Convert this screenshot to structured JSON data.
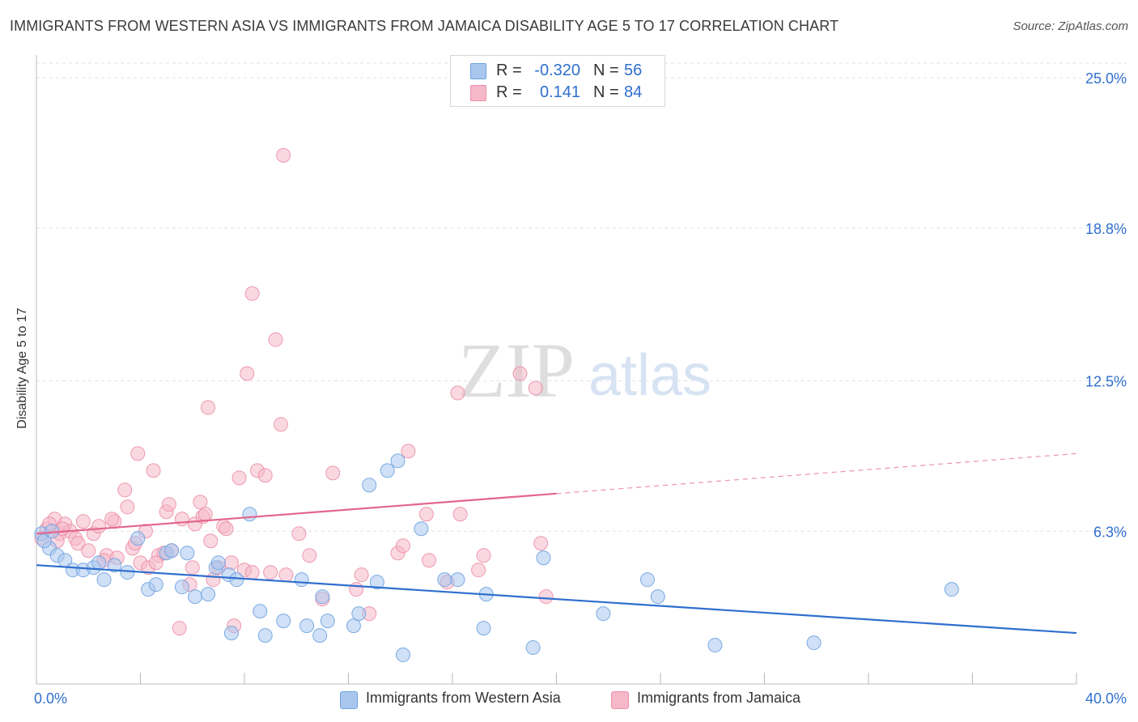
{
  "title": "IMMIGRANTS FROM WESTERN ASIA VS IMMIGRANTS FROM JAMAICA DISABILITY AGE 5 TO 17 CORRELATION CHART",
  "source": "Source: ZipAtlas.com",
  "watermark": {
    "zip": "ZIP",
    "atlas": "atlas"
  },
  "legend": {
    "rows": [
      {
        "r_label": "R =",
        "r_value": "-0.320",
        "n_label": "N =",
        "n_value": "56",
        "color": "#a9c6ee"
      },
      {
        "r_label": "R =",
        "r_value": "0.141",
        "n_label": "N =",
        "n_value": "84",
        "color": "#f5b8c8"
      }
    ]
  },
  "bottom_legend": [
    {
      "label": "Immigrants from Western Asia",
      "color": "#a9c6ee"
    },
    {
      "label": "Immigrants from Jamaica",
      "color": "#f5b8c8"
    }
  ],
  "chart_data": {
    "type": "scatter",
    "title": "IMMIGRANTS FROM WESTERN ASIA VS IMMIGRANTS FROM JAMAICA DISABILITY AGE 5 TO 17 CORRELATION CHART",
    "xlabel": "",
    "ylabel": "Disability Age 5 to 17",
    "xlim": [
      0,
      40
    ],
    "ylim": [
      0,
      25
    ],
    "x_tick_labels": [
      "0.0%",
      "40.0%"
    ],
    "y_tick_values": [
      6.3,
      12.5,
      18.8,
      25.0
    ],
    "y_tick_labels": [
      "6.3%",
      "12.5%",
      "18.8%",
      "25.0%"
    ],
    "grid": true,
    "legend_position": "top-center",
    "series": [
      {
        "name": "Immigrants from Western Asia",
        "color": "#6ea3e0",
        "fill": "#a9c6ee",
        "trend": {
          "x": [
            0,
            40
          ],
          "y": [
            4.9,
            2.1
          ],
          "solid_until": 40
        },
        "points": [
          [
            0.2,
            6.2
          ],
          [
            0.5,
            5.6
          ],
          [
            0.8,
            5.3
          ],
          [
            1.1,
            5.1
          ],
          [
            1.4,
            4.7
          ],
          [
            1.8,
            4.7
          ],
          [
            2.2,
            4.8
          ],
          [
            2.6,
            4.3
          ],
          [
            3.0,
            4.9
          ],
          [
            3.5,
            4.6
          ],
          [
            3.9,
            6.0
          ],
          [
            4.3,
            3.9
          ],
          [
            4.6,
            4.1
          ],
          [
            5.0,
            5.4
          ],
          [
            5.2,
            5.5
          ],
          [
            5.6,
            4.0
          ],
          [
            5.8,
            5.4
          ],
          [
            6.1,
            3.6
          ],
          [
            6.6,
            3.7
          ],
          [
            6.9,
            4.8
          ],
          [
            7.0,
            5.0
          ],
          [
            7.4,
            4.5
          ],
          [
            7.5,
            2.1
          ],
          [
            7.7,
            4.3
          ],
          [
            8.2,
            7.0
          ],
          [
            8.6,
            3.0
          ],
          [
            8.8,
            2.0
          ],
          [
            9.5,
            2.6
          ],
          [
            10.2,
            4.3
          ],
          [
            10.4,
            2.4
          ],
          [
            10.9,
            2.0
          ],
          [
            11.0,
            3.6
          ],
          [
            11.2,
            2.6
          ],
          [
            12.2,
            2.4
          ],
          [
            12.4,
            2.9
          ],
          [
            13.1,
            4.2
          ],
          [
            12.8,
            8.2
          ],
          [
            13.5,
            8.8
          ],
          [
            13.9,
            9.2
          ],
          [
            14.1,
            1.2
          ],
          [
            14.8,
            6.4
          ],
          [
            15.7,
            4.3
          ],
          [
            16.2,
            4.3
          ],
          [
            17.2,
            2.3
          ],
          [
            17.3,
            3.7
          ],
          [
            19.1,
            1.5
          ],
          [
            19.5,
            5.2
          ],
          [
            21.8,
            2.9
          ],
          [
            23.5,
            4.3
          ],
          [
            23.9,
            3.6
          ],
          [
            26.1,
            1.6
          ],
          [
            29.9,
            1.7
          ],
          [
            35.2,
            3.9
          ],
          [
            0.3,
            5.9
          ],
          [
            0.6,
            6.3
          ],
          [
            2.4,
            5.0
          ]
        ]
      },
      {
        "name": "Immigrants from Jamaica",
        "color": "#ec8fa9",
        "fill": "#f5b8c8",
        "trend": {
          "x": [
            0,
            40
          ],
          "y": [
            6.2,
            9.5
          ],
          "solid_until": 20
        },
        "points": [
          [
            0.2,
            6.0
          ],
          [
            0.4,
            6.4
          ],
          [
            0.7,
            6.8
          ],
          [
            0.9,
            6.2
          ],
          [
            1.1,
            6.6
          ],
          [
            1.3,
            6.3
          ],
          [
            1.5,
            6.0
          ],
          [
            1.6,
            5.8
          ],
          [
            1.8,
            6.7
          ],
          [
            2.0,
            5.5
          ],
          [
            2.2,
            6.2
          ],
          [
            2.4,
            6.5
          ],
          [
            2.7,
            5.3
          ],
          [
            2.6,
            5.1
          ],
          [
            3.0,
            6.7
          ],
          [
            3.1,
            5.2
          ],
          [
            3.4,
            8.0
          ],
          [
            3.5,
            7.3
          ],
          [
            3.7,
            5.6
          ],
          [
            3.8,
            5.8
          ],
          [
            3.9,
            9.5
          ],
          [
            4.0,
            5.0
          ],
          [
            4.2,
            6.3
          ],
          [
            4.3,
            4.8
          ],
          [
            4.5,
            8.8
          ],
          [
            4.7,
            5.3
          ],
          [
            4.9,
            5.4
          ],
          [
            5.0,
            7.1
          ],
          [
            5.1,
            7.4
          ],
          [
            5.2,
            5.5
          ],
          [
            5.5,
            2.3
          ],
          [
            5.6,
            6.8
          ],
          [
            5.9,
            4.1
          ],
          [
            6.0,
            4.8
          ],
          [
            6.1,
            6.6
          ],
          [
            6.3,
            7.5
          ],
          [
            6.4,
            6.9
          ],
          [
            6.5,
            7.0
          ],
          [
            6.6,
            11.4
          ],
          [
            6.8,
            4.3
          ],
          [
            7.0,
            4.8
          ],
          [
            7.2,
            6.5
          ],
          [
            7.3,
            6.4
          ],
          [
            7.5,
            5.0
          ],
          [
            7.6,
            2.4
          ],
          [
            7.8,
            8.5
          ],
          [
            8.0,
            4.7
          ],
          [
            8.1,
            12.8
          ],
          [
            8.3,
            4.6
          ],
          [
            8.3,
            16.1
          ],
          [
            8.5,
            8.8
          ],
          [
            8.8,
            8.6
          ],
          [
            9.0,
            4.6
          ],
          [
            9.2,
            14.2
          ],
          [
            9.4,
            10.7
          ],
          [
            9.6,
            4.5
          ],
          [
            9.5,
            21.8
          ],
          [
            10.1,
            6.2
          ],
          [
            10.5,
            5.3
          ],
          [
            11.0,
            3.5
          ],
          [
            11.4,
            8.7
          ],
          [
            12.3,
            3.9
          ],
          [
            12.8,
            2.9
          ],
          [
            13.9,
            5.4
          ],
          [
            14.1,
            5.7
          ],
          [
            14.3,
            9.6
          ],
          [
            15.0,
            7.0
          ],
          [
            15.1,
            5.1
          ],
          [
            15.8,
            4.2
          ],
          [
            16.3,
            7.0
          ],
          [
            16.2,
            12.0
          ],
          [
            17.0,
            4.7
          ],
          [
            17.2,
            5.3
          ],
          [
            18.6,
            12.8
          ],
          [
            19.2,
            12.2
          ],
          [
            19.4,
            5.8
          ],
          [
            19.6,
            3.6
          ],
          [
            0.5,
            6.6
          ],
          [
            1.0,
            6.4
          ],
          [
            2.9,
            6.8
          ],
          [
            4.6,
            5.0
          ],
          [
            6.7,
            5.9
          ],
          [
            12.5,
            4.5
          ],
          [
            0.8,
            5.9
          ]
        ]
      }
    ]
  }
}
